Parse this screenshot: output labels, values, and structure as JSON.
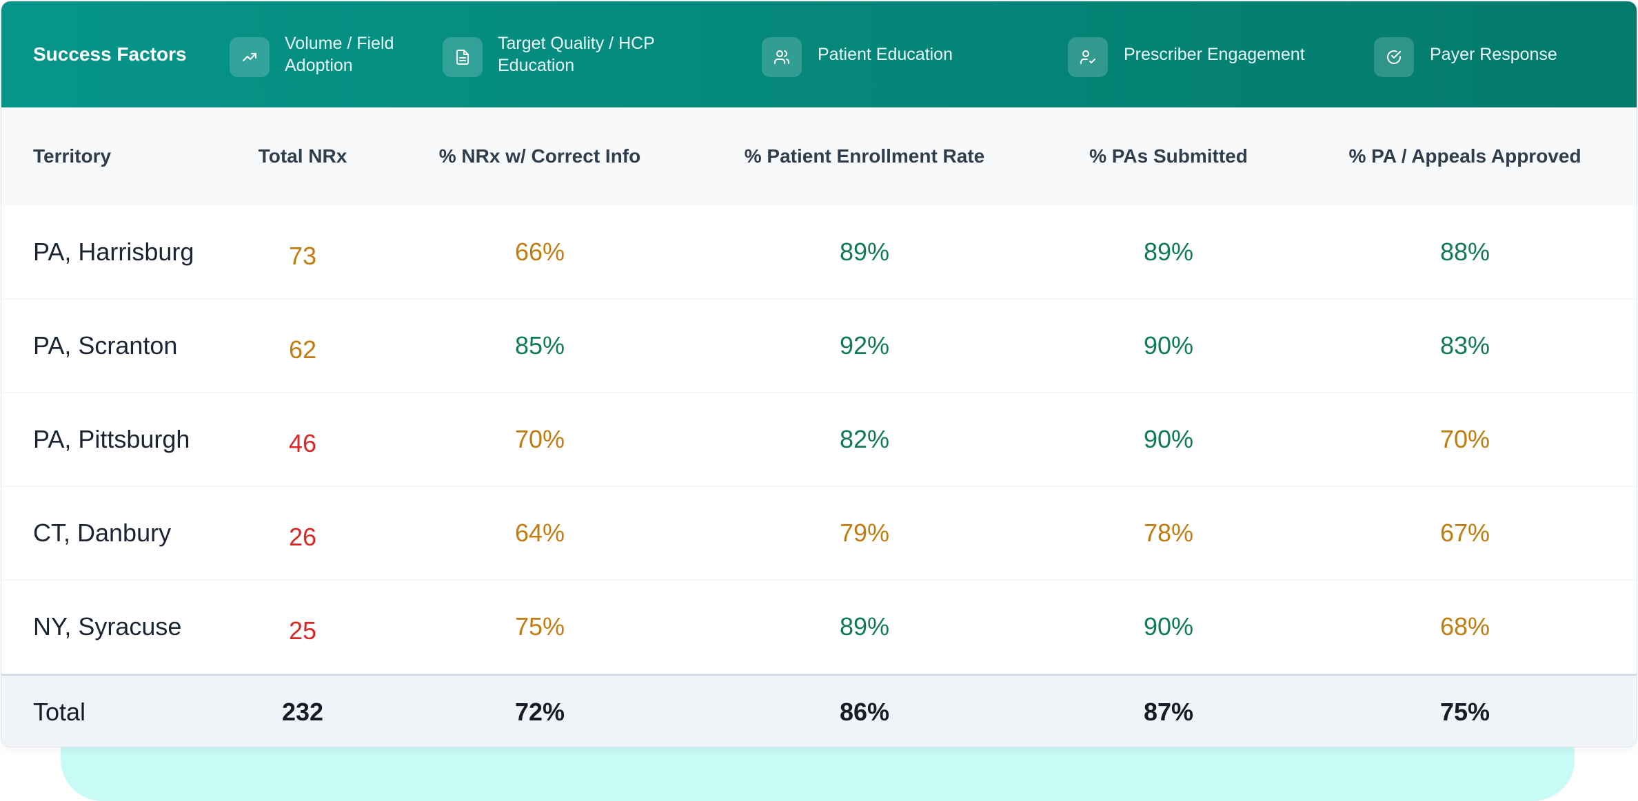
{
  "header": {
    "title": "Success Factors",
    "factors": [
      "Volume / Field Adoption",
      "Target Quality / HCP Education",
      "Patient Education",
      "Prescriber Engagement",
      "Payer Response"
    ]
  },
  "table": {
    "columns": [
      "Territory",
      "Total NRx",
      "% NRx w/ Correct Info",
      "% Patient Enrollment Rate",
      "% PAs Submitted",
      "% PA / Appeals Approved"
    ],
    "rows": [
      [
        "PA, Harrisburg",
        "73",
        "66%",
        "89%",
        "89%",
        "88%"
      ],
      [
        "PA, Scranton",
        "62",
        "85%",
        "92%",
        "90%",
        "83%"
      ],
      [
        "PA, Pittsburgh",
        "46",
        "70%",
        "82%",
        "90%",
        "70%"
      ],
      [
        "CT, Danbury",
        "26",
        "64%",
        "79%",
        "78%",
        "67%"
      ],
      [
        "NY, Syracuse",
        "25",
        "75%",
        "89%",
        "90%",
        "68%"
      ]
    ],
    "colors": [
      [
        "#c27c0e",
        "#c27c0e",
        "#0f7a55",
        "#0f7a55",
        "#0f7a55"
      ],
      [
        "#c27c0e",
        "#0f7a55",
        "#0f7a55",
        "#0f7a55",
        "#0f7a55"
      ],
      [
        "#dc2626",
        "#c27c0e",
        "#0f7a55",
        "#0f7a55",
        "#c27c0e"
      ],
      [
        "#dc2626",
        "#c27c0e",
        "#c27c0e",
        "#c27c0e",
        "#c27c0e"
      ],
      [
        "#dc2626",
        "#c27c0e",
        "#0f7a55",
        "#0f7a55",
        "#c27c0e"
      ]
    ],
    "total": [
      "Total",
      "232",
      "72%",
      "86%",
      "87%",
      "75%"
    ]
  }
}
